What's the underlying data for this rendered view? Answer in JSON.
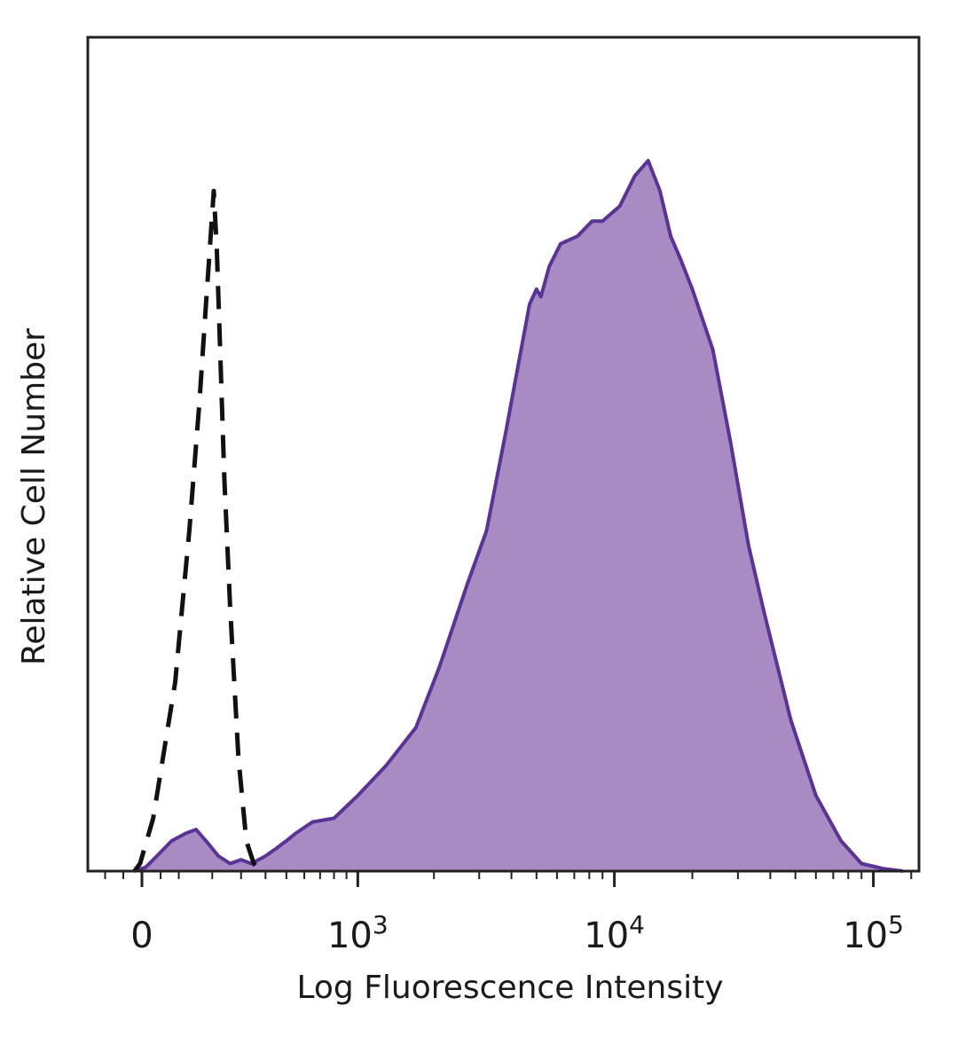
{
  "chart_data": {
    "type": "area",
    "xlabel": "Log Fluorescence Intensity",
    "ylabel": "Relative Cell Number",
    "x_scale": "biexponential",
    "xlim": [
      -150,
      150000
    ],
    "ylim": [
      0,
      100
    ],
    "grid": false,
    "x_ticks": [
      {
        "value": 0,
        "base": "0",
        "exp": ""
      },
      {
        "value": 1000,
        "base": "10",
        "exp": "3"
      },
      {
        "value": 10000,
        "base": "10",
        "exp": "4"
      },
      {
        "value": 100000,
        "base": "10",
        "exp": "5"
      }
    ],
    "colors": {
      "stained_fill": "#a98bc4",
      "stained_line": "#5a3396",
      "control_line": "#111111",
      "frame": "#222222"
    },
    "series": [
      {
        "style": "dashed-outline",
        "points": [
          [
            -20,
            0
          ],
          [
            -5,
            1
          ],
          [
            30,
            7
          ],
          [
            90,
            25
          ],
          [
            130,
            45
          ],
          [
            160,
            62
          ],
          [
            180,
            75
          ],
          [
            195,
            84
          ],
          [
            205,
            90
          ],
          [
            215,
            82
          ],
          [
            225,
            70
          ],
          [
            240,
            52
          ],
          [
            260,
            35
          ],
          [
            290,
            15
          ],
          [
            320,
            4
          ],
          [
            350,
            1
          ],
          [
            380,
            0
          ]
        ]
      },
      {
        "style": "filled-solid",
        "points": [
          [
            -20,
            0
          ],
          [
            10,
            0.5
          ],
          [
            40,
            2
          ],
          [
            80,
            4
          ],
          [
            120,
            5
          ],
          [
            150,
            5.5
          ],
          [
            180,
            4
          ],
          [
            220,
            2
          ],
          [
            260,
            1
          ],
          [
            300,
            1.5
          ],
          [
            340,
            1
          ],
          [
            400,
            2
          ],
          [
            450,
            3
          ],
          [
            500,
            4
          ],
          [
            550,
            5
          ],
          [
            650,
            6.5
          ],
          [
            800,
            7
          ],
          [
            1000,
            10
          ],
          [
            1300,
            14
          ],
          [
            1700,
            19
          ],
          [
            2100,
            27
          ],
          [
            2700,
            38
          ],
          [
            3200,
            45
          ],
          [
            3800,
            58
          ],
          [
            4200,
            66
          ],
          [
            4700,
            75
          ],
          [
            5000,
            77
          ],
          [
            5200,
            76
          ],
          [
            5600,
            80
          ],
          [
            6200,
            83
          ],
          [
            7200,
            84
          ],
          [
            8200,
            86
          ],
          [
            9000,
            86
          ],
          [
            10500,
            88
          ],
          [
            12000,
            92
          ],
          [
            13500,
            94
          ],
          [
            15000,
            90
          ],
          [
            16500,
            84
          ],
          [
            18000,
            81
          ],
          [
            20000,
            77
          ],
          [
            24000,
            69
          ],
          [
            28000,
            57
          ],
          [
            33000,
            43
          ],
          [
            38000,
            34
          ],
          [
            48000,
            20
          ],
          [
            60000,
            10
          ],
          [
            75000,
            4
          ],
          [
            90000,
            1
          ],
          [
            110000,
            0.3
          ],
          [
            130000,
            0
          ]
        ]
      }
    ]
  }
}
